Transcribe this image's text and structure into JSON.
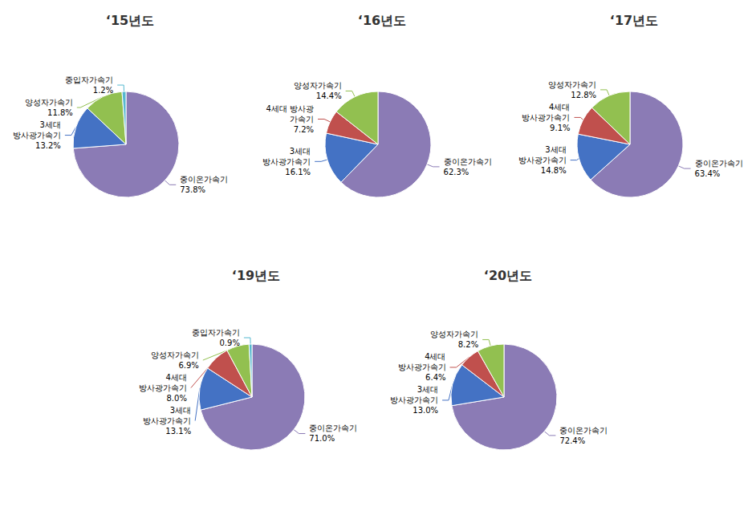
{
  "chart_data": [
    {
      "type": "pie",
      "title": "‘15년도",
      "categories": [
        "중이온가속기",
        "3세대\n방사광가속기",
        "양성자가속기",
        "중입자가속기"
      ],
      "values": [
        73.8,
        13.2,
        11.8,
        1.2
      ],
      "value_labels": [
        "73.8%",
        "13.2%",
        "11.8%",
        "1.2%"
      ],
      "colors": [
        "#8B7BB5",
        "#4472C4",
        "#92C050",
        "#56B9D0"
      ],
      "data_labels": true
    },
    {
      "type": "pie",
      "title": "‘16년도",
      "categories": [
        "중이온가속기",
        "3세대\n방사광가속기",
        "4세대 방사광\n가속기",
        "양성자가속기"
      ],
      "values": [
        62.3,
        16.1,
        7.2,
        14.4
      ],
      "value_labels": [
        "62.3%",
        "16.1%",
        "7.2%",
        "14.4%"
      ],
      "colors": [
        "#8B7BB5",
        "#4472C4",
        "#C0504D",
        "#92C050"
      ],
      "data_labels": true
    },
    {
      "type": "pie",
      "title": "‘17년도",
      "categories": [
        "중이온가속기",
        "3세대\n방사광가속기",
        "4세대\n방사광가속기",
        "양성자가속기"
      ],
      "values": [
        63.4,
        14.8,
        9.1,
        12.8
      ],
      "value_labels": [
        "63.4%",
        "14.8%",
        "9.1%",
        "12.8%"
      ],
      "colors": [
        "#8B7BB5",
        "#4472C4",
        "#C0504D",
        "#92C050"
      ],
      "data_labels": true
    },
    {
      "type": "pie",
      "title": "‘19년도",
      "categories": [
        "중이온가속기",
        "3세대\n방사광가속기",
        "4세대\n방사광가속기",
        "양성자가속기",
        "중입자가속기"
      ],
      "values": [
        71.0,
        13.1,
        8.0,
        6.9,
        0.9
      ],
      "value_labels": [
        "71.0%",
        "13.1%",
        "8.0%",
        "6.9%",
        "0.9%"
      ],
      "colors": [
        "#8B7BB5",
        "#4472C4",
        "#C0504D",
        "#92C050",
        "#56B9D0"
      ],
      "data_labels": true
    },
    {
      "type": "pie",
      "title": "‘20년도",
      "categories": [
        "중이온가속기",
        "3세대\n방사광가속기",
        "4세대\n방사광가속기",
        "양성자가속기"
      ],
      "values": [
        72.4,
        13.0,
        6.4,
        8.2
      ],
      "value_labels": [
        "72.4%",
        "13.0%",
        "6.4%",
        "8.2%"
      ],
      "colors": [
        "#8B7BB5",
        "#4472C4",
        "#C0504D",
        "#92C050"
      ],
      "data_labels": true
    }
  ]
}
